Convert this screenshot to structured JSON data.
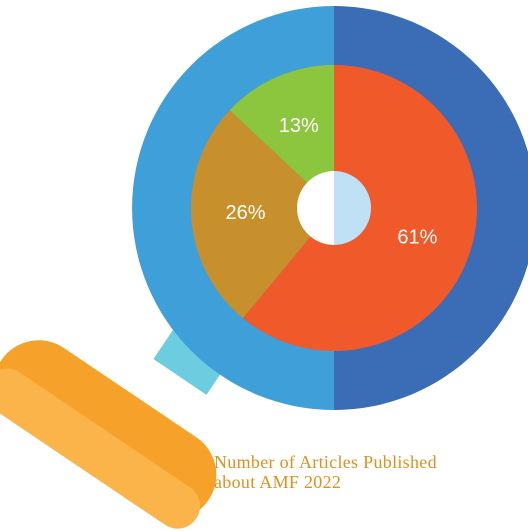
{
  "chart_data": {
    "type": "pie",
    "title_lines": [
      "Number of Articles Published",
      "about AMF 2022"
    ],
    "slices": [
      {
        "value": 61,
        "label": "61%",
        "color": "#f05a2b"
      },
      {
        "value": 26,
        "label": "26%",
        "color": "#c8902c"
      },
      {
        "value": 13,
        "label": "13%",
        "color": "#8cc63f"
      }
    ]
  },
  "colors": {
    "lens_ring_left": "#3f9fd9",
    "lens_ring_right": "#3a6db5",
    "center_hole_left": "#ffffff",
    "center_hole_right": "#bfe0f5",
    "handle_neck": "#6ccde0",
    "handle_main": "#f6a22a",
    "handle_light": "#fbb44a",
    "caption": "#e0901e"
  },
  "icons": {
    "magnifier": "magnifying-glass-icon"
  }
}
